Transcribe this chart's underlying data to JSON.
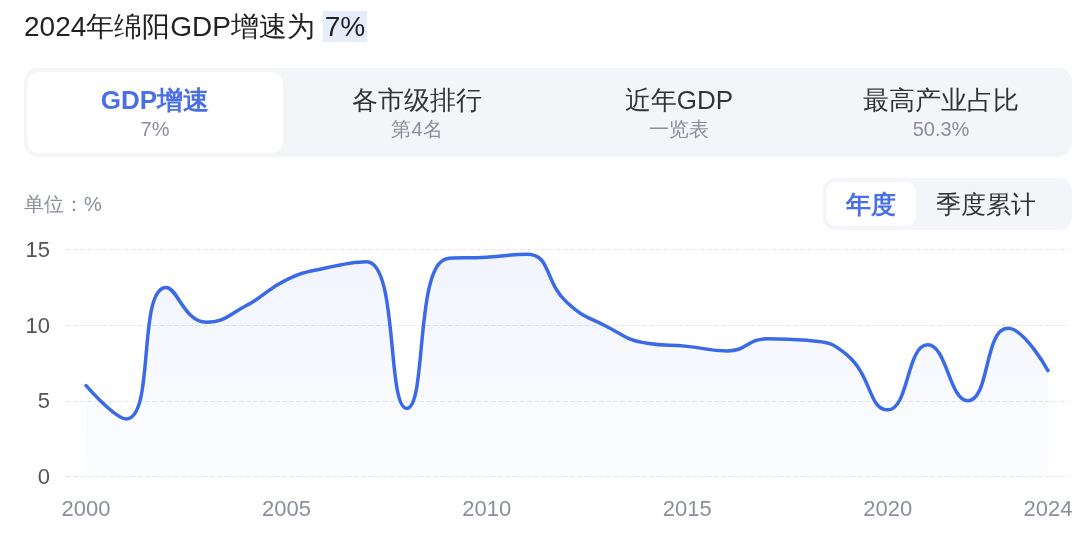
{
  "chart_data": {
    "type": "area",
    "title": "2024年绵阳GDP增速为 7%",
    "ylabel": "单位：%",
    "annotations": [
      "GDP增速",
      "7%",
      "各市级排行",
      "第4名",
      "近年GDP",
      "一览表",
      "最高产业占比",
      "50.3%",
      "年度",
      "季度累计"
    ],
    "categories": [
      "2000",
      null,
      null,
      null,
      null,
      "2005",
      null,
      null,
      null,
      null,
      "2010",
      null,
      null,
      null,
      null,
      "2015",
      null,
      null,
      null,
      null,
      "2020",
      null,
      null,
      null,
      "2024"
    ],
    "values": [
      6.0,
      3.8,
      12.5,
      10.2,
      11.3,
      13.0,
      13.8,
      14.2,
      4.5,
      14.4,
      14.5,
      14.7,
      11.5,
      9.9,
      8.8,
      8.6,
      8.3,
      9.1,
      9.0,
      8.0,
      4.4,
      8.7,
      5.0,
      9.8,
      7.0
    ],
    "color": "#3b6ae8",
    "ylim": [
      0,
      15
    ],
    "yticks": [
      0,
      5,
      10,
      15
    ],
    "grid": "y",
    "marker": "none"
  }
}
